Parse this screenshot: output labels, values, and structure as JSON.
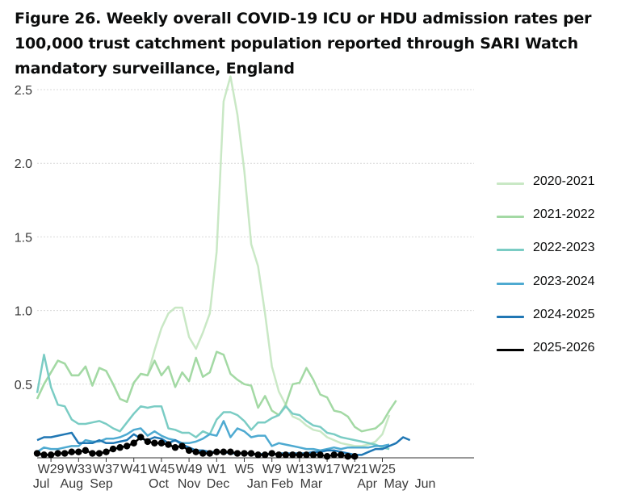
{
  "title": "Figure 26. Weekly overall COVID-19 ICU or HDU admission rates per 100,000 trust catchment population reported through SARI Watch mandatory surveillance, England",
  "chart_data": {
    "type": "line",
    "title": "Figure 26. Weekly overall COVID-19 ICU or HDU admission rates per 100,000 trust catchment population reported through SARI Watch mandatory surveillance, England",
    "xlabel": "",
    "ylabel": "",
    "ylim": [
      0,
      2.6
    ],
    "yticks": [
      "0.5",
      "1.0",
      "1.5",
      "2.0",
      "2.5"
    ],
    "xticks_week": [
      "W29",
      "W33",
      "W37",
      "W41",
      "W45",
      "W49",
      "W1",
      "W5",
      "W9",
      "W13",
      "W17",
      "W21",
      "W25"
    ],
    "xticks_month": [
      "Jul",
      "Aug",
      "Sep",
      "Oct",
      "Nov",
      "Dec",
      "Jan",
      "Feb",
      "Mar",
      "Apr",
      "May",
      "Jun"
    ],
    "x_note": "x index 0 = week 27 of the season year; weeks run W27…W52, W1…W26",
    "grid": true,
    "legend_position": "right",
    "series": [
      {
        "name": "2020-2021",
        "color": "#c9e8c5",
        "marker": false,
        "values": [
          0.4,
          0.5,
          0.58,
          0.66,
          0.64,
          0.56,
          0.56,
          0.62,
          0.49,
          0.61,
          0.59,
          0.5,
          0.4,
          0.38,
          0.51,
          0.57,
          0.56,
          0.73,
          0.88,
          0.98,
          1.02,
          1.02,
          0.82,
          0.74,
          0.85,
          0.98,
          1.4,
          2.42,
          2.59,
          2.33,
          1.95,
          1.45,
          1.3,
          0.98,
          0.62,
          0.45,
          0.36,
          0.28,
          0.26,
          0.22,
          0.19,
          0.18,
          0.14,
          0.12,
          0.1,
          0.09,
          0.08,
          0.08,
          0.09,
          0.11,
          0.16,
          0.29
        ]
      },
      {
        "name": "2021-2022",
        "color": "#a3d9a4",
        "marker": false,
        "values": [
          0.4,
          0.5,
          0.58,
          0.66,
          0.64,
          0.56,
          0.56,
          0.62,
          0.49,
          0.61,
          0.59,
          0.5,
          0.4,
          0.38,
          0.51,
          0.57,
          0.56,
          0.66,
          0.56,
          0.62,
          0.48,
          0.58,
          0.52,
          0.68,
          0.55,
          0.58,
          0.72,
          0.7,
          0.57,
          0.53,
          0.5,
          0.49,
          0.34,
          0.42,
          0.32,
          0.29,
          0.36,
          0.5,
          0.51,
          0.61,
          0.53,
          0.43,
          0.41,
          0.32,
          0.31,
          0.28,
          0.21,
          0.18,
          0.19,
          0.2,
          0.24,
          0.32,
          0.39
        ]
      },
      {
        "name": "2022-2023",
        "color": "#7accc4",
        "marker": false,
        "values": [
          0.44,
          0.7,
          0.48,
          0.36,
          0.35,
          0.26,
          0.23,
          0.23,
          0.24,
          0.25,
          0.23,
          0.2,
          0.18,
          0.24,
          0.3,
          0.35,
          0.34,
          0.35,
          0.35,
          0.2,
          0.19,
          0.17,
          0.17,
          0.14,
          0.18,
          0.16,
          0.26,
          0.31,
          0.31,
          0.29,
          0.25,
          0.19,
          0.24,
          0.24,
          0.27,
          0.29,
          0.35,
          0.3,
          0.29,
          0.25,
          0.22,
          0.21,
          0.17,
          0.16,
          0.14,
          0.13,
          0.12,
          0.11,
          0.1,
          0.09,
          0.07,
          0.06
        ]
      },
      {
        "name": "2023-2024",
        "color": "#4eaad1",
        "marker": false,
        "values": [
          0.04,
          0.07,
          0.06,
          0.06,
          0.07,
          0.08,
          0.08,
          0.12,
          0.11,
          0.11,
          0.13,
          0.13,
          0.14,
          0.16,
          0.19,
          0.2,
          0.15,
          0.18,
          0.15,
          0.13,
          0.12,
          0.1,
          0.1,
          0.11,
          0.13,
          0.16,
          0.15,
          0.25,
          0.14,
          0.2,
          0.18,
          0.14,
          0.15,
          0.15,
          0.08,
          0.1,
          0.09,
          0.08,
          0.07,
          0.06,
          0.06,
          0.05,
          0.06,
          0.07,
          0.06,
          0.07,
          0.07,
          0.07,
          0.07,
          0.08,
          0.08,
          0.09
        ]
      },
      {
        "name": "2024-2025",
        "color": "#2077b4",
        "marker": false,
        "values": [
          0.12,
          0.14,
          0.14,
          0.15,
          0.16,
          0.17,
          0.1,
          0.1,
          0.1,
          0.12,
          0.1,
          0.1,
          0.11,
          0.12,
          0.16,
          0.13,
          0.12,
          0.14,
          0.13,
          0.1,
          0.12,
          0.09,
          0.07,
          0.05,
          0.05,
          0.04,
          0.04,
          0.04,
          0.03,
          0.03,
          0.03,
          0.03,
          0.02,
          0.03,
          0.02,
          0.03,
          0.03,
          0.03,
          0.03,
          0.03,
          0.04,
          0.04,
          0.05,
          0.05,
          0.04,
          0.03,
          0.02,
          0.02,
          0.04,
          0.06,
          0.06,
          0.08,
          0.1,
          0.14,
          0.12
        ]
      },
      {
        "name": "2025-2026",
        "color": "#000000",
        "marker": true,
        "values": [
          0.03,
          0.02,
          0.02,
          0.03,
          0.03,
          0.04,
          0.04,
          0.05,
          0.03,
          0.03,
          0.04,
          0.06,
          0.07,
          0.08,
          0.1,
          0.14,
          0.11,
          0.1,
          0.1,
          0.09,
          0.07,
          0.08,
          0.05,
          0.04,
          0.03,
          0.03,
          0.04,
          0.04,
          0.04,
          0.03,
          0.03,
          0.03,
          0.02,
          0.02,
          0.03,
          0.02,
          0.02,
          0.02,
          0.02,
          0.02,
          0.02,
          0.02,
          0.01,
          0.02,
          0.02,
          0.01,
          0.01
        ]
      }
    ]
  }
}
